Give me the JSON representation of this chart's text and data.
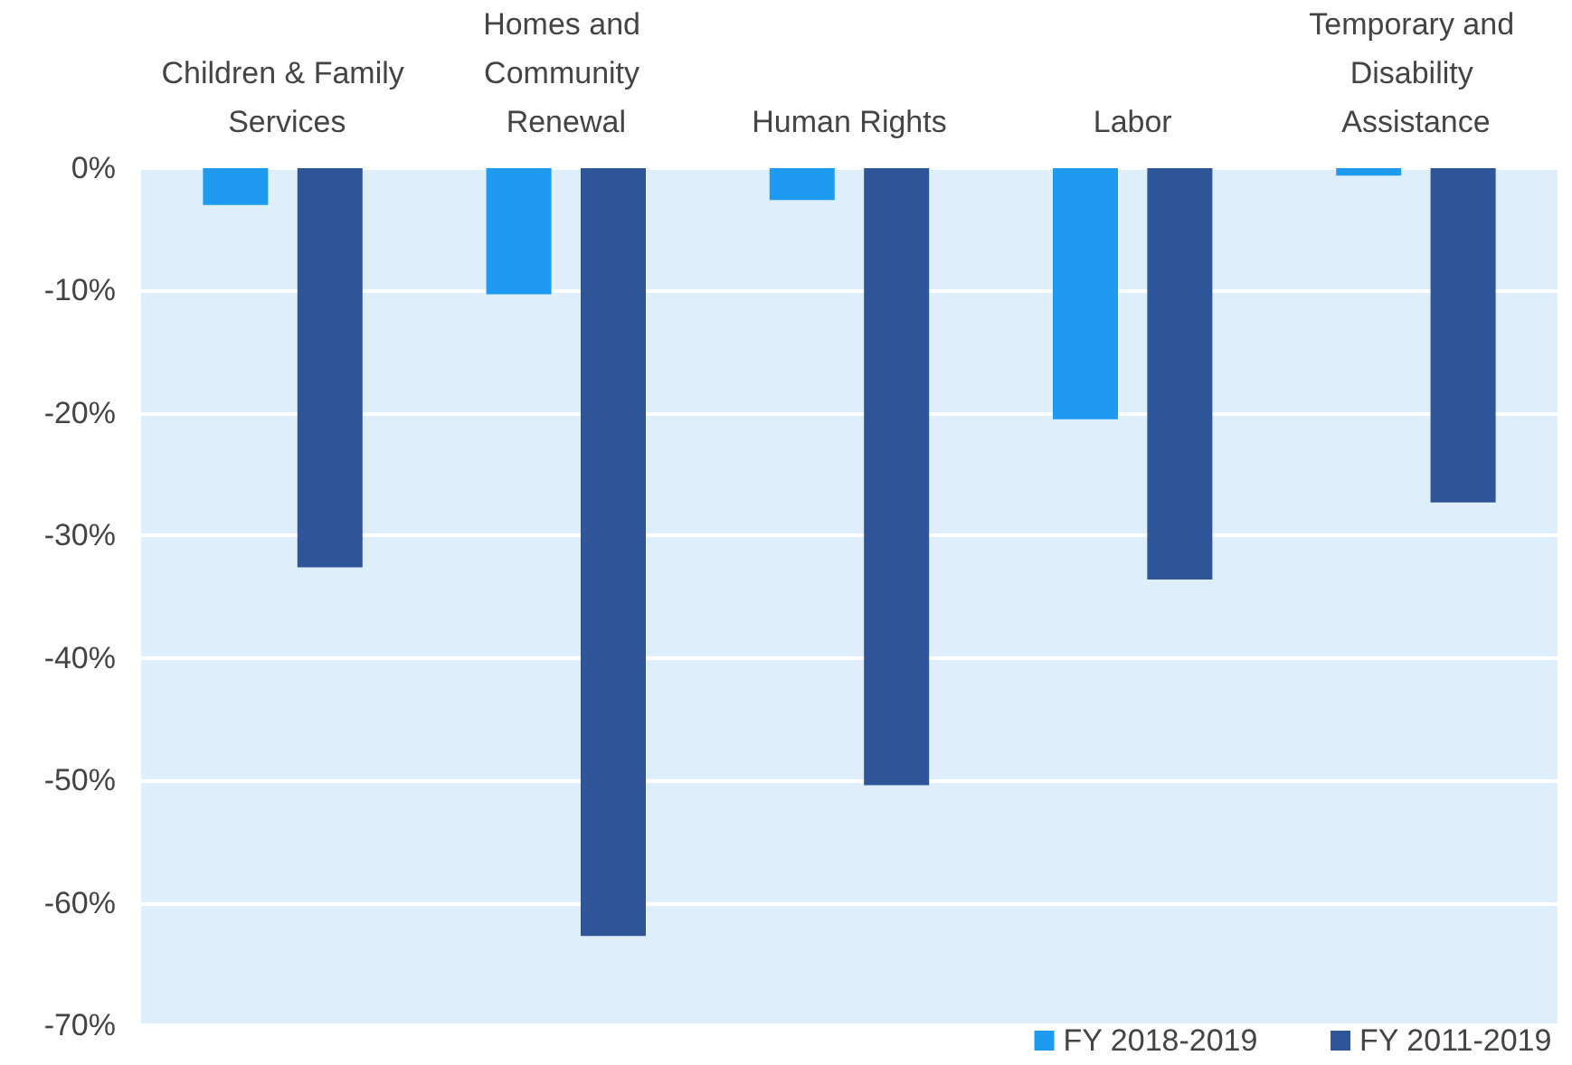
{
  "chart_data": {
    "type": "bar",
    "categories": [
      "Children & Family Services",
      "Homes and Community Renewal",
      "Human Rights",
      "Labor",
      "Temporary and Disability Assistance"
    ],
    "series": [
      {
        "name": "FY 2018-2019",
        "color": "#1e9bf0",
        "values": [
          -3.0,
          -10.3,
          -2.6,
          -20.5,
          -0.6
        ]
      },
      {
        "name": "FY 2011-2019",
        "color": "#2e5597",
        "values": [
          -32.6,
          -62.7,
          -50.4,
          -33.6,
          -27.3
        ]
      }
    ],
    "ylim": [
      -70,
      0
    ],
    "yticks": [
      {
        "value": -70,
        "label": "-70%"
      },
      {
        "value": -60,
        "label": "-60%"
      },
      {
        "value": -50,
        "label": "-50%"
      },
      {
        "value": -40,
        "label": "-40%"
      },
      {
        "value": -30,
        "label": "-30%"
      },
      {
        "value": -20,
        "label": "-20%"
      },
      {
        "value": -10,
        "label": "-10%"
      },
      {
        "value": 0,
        "label": "0%"
      }
    ],
    "grid": "y",
    "legend": "bottom right"
  }
}
